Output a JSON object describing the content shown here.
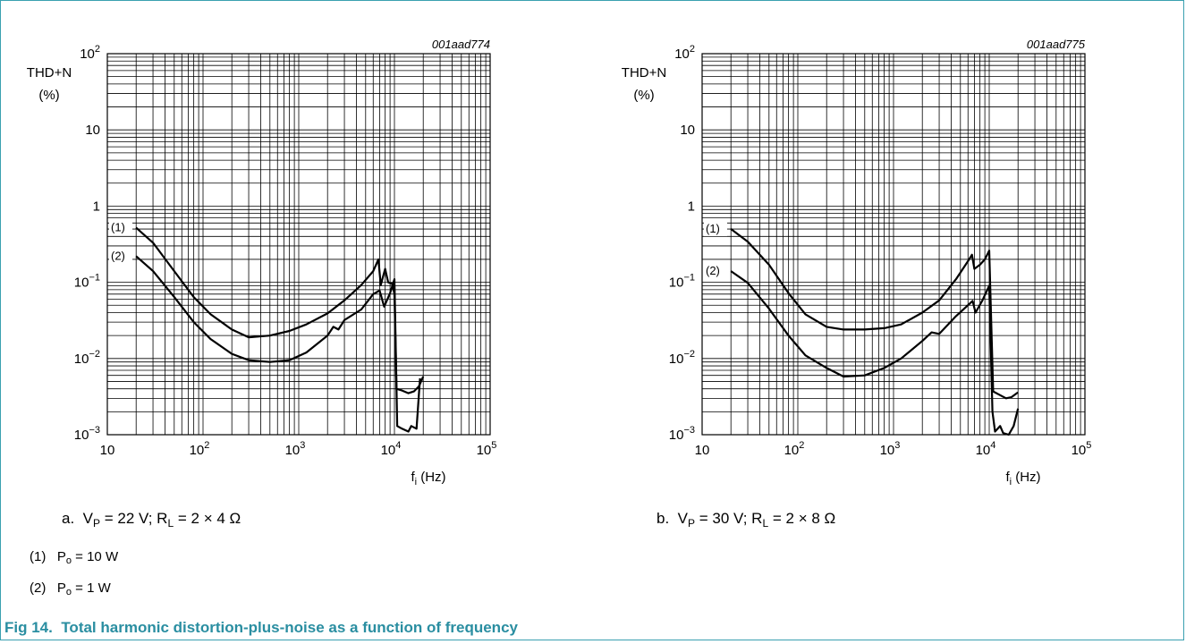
{
  "caption": {
    "fig_label": "Fig 14.",
    "fig_title": "Total harmonic distortion-plus-noise as a function of frequency"
  },
  "notes": [
    {
      "num": "(1)",
      "sym": "P",
      "sub": "o",
      "rest": " = 10 W"
    },
    {
      "num": "(2)",
      "sym": "P",
      "sub": "o",
      "rest": " = 1 W"
    }
  ],
  "chart_data": [
    {
      "type": "line",
      "code": "001aad774",
      "subcaption": {
        "prefix": "a.",
        "v_sym": "V",
        "v_sub": "P",
        "v_rest": " = 22 V; ",
        "r_sym": "R",
        "r_sub": "L",
        "r_rest": " = 2 × 4 Ω"
      },
      "ylabel": [
        "THD+N",
        "(%)"
      ],
      "xlabel": {
        "sym": "f",
        "sub": "i",
        "rest": " (Hz)"
      },
      "xscale": "log",
      "yscale": "log",
      "xlim": [
        10,
        100000
      ],
      "ylim": [
        0.001,
        100
      ],
      "x_ticks": [
        {
          "base": "10",
          "exp": ""
        },
        {
          "base": "10",
          "exp": "2"
        },
        {
          "base": "10",
          "exp": "3"
        },
        {
          "base": "10",
          "exp": "4"
        },
        {
          "base": "10",
          "exp": "5"
        }
      ],
      "y_ticks": [
        {
          "base": "10",
          "exp": "−3"
        },
        {
          "base": "10",
          "exp": "−2"
        },
        {
          "base": "10",
          "exp": "−1"
        },
        {
          "base": "1",
          "exp": ""
        },
        {
          "base": "10",
          "exp": ""
        },
        {
          "base": "10",
          "exp": "2"
        }
      ],
      "grid": true,
      "series": [
        {
          "name": "(1)",
          "points": [
            [
              20,
              0.52
            ],
            [
              30,
              0.33
            ],
            [
              50,
              0.14
            ],
            [
              80,
              0.064
            ],
            [
              120,
              0.038
            ],
            [
              200,
              0.024
            ],
            [
              300,
              0.019
            ],
            [
              500,
              0.02
            ],
            [
              800,
              0.023
            ],
            [
              1200,
              0.028
            ],
            [
              2000,
              0.039
            ],
            [
              3000,
              0.058
            ],
            [
              4500,
              0.092
            ],
            [
              6000,
              0.14
            ],
            [
              6800,
              0.2
            ],
            [
              7200,
              0.092
            ],
            [
              8000,
              0.15
            ],
            [
              8600,
              0.1
            ],
            [
              9500,
              0.095
            ],
            [
              10000,
              0.07
            ],
            [
              10500,
              0.004
            ],
            [
              12000,
              0.0038
            ],
            [
              14000,
              0.0035
            ],
            [
              16000,
              0.0037
            ],
            [
              18000,
              0.0043
            ],
            [
              20000,
              0.0058
            ]
          ]
        },
        {
          "name": "(2)",
          "points": [
            [
              20,
              0.22
            ],
            [
              30,
              0.14
            ],
            [
              50,
              0.064
            ],
            [
              80,
              0.03
            ],
            [
              120,
              0.018
            ],
            [
              200,
              0.0115
            ],
            [
              300,
              0.0095
            ],
            [
              500,
              0.009
            ],
            [
              800,
              0.0095
            ],
            [
              1200,
              0.012
            ],
            [
              2000,
              0.02
            ],
            [
              2300,
              0.026
            ],
            [
              2600,
              0.024
            ],
            [
              3000,
              0.032
            ],
            [
              4500,
              0.044
            ],
            [
              6000,
              0.07
            ],
            [
              7000,
              0.078
            ],
            [
              7800,
              0.048
            ],
            [
              9000,
              0.072
            ],
            [
              10000,
              0.11
            ],
            [
              10700,
              0.0013
            ],
            [
              12000,
              0.0012
            ],
            [
              14000,
              0.0011
            ],
            [
              15000,
              0.0013
            ],
            [
              17000,
              0.0012
            ],
            [
              18500,
              0.0055
            ]
          ]
        }
      ]
    },
    {
      "type": "line",
      "code": "001aad775",
      "subcaption": {
        "prefix": "b.",
        "v_sym": "V",
        "v_sub": "P",
        "v_rest": " = 30 V; ",
        "r_sym": "R",
        "r_sub": "L",
        "r_rest": " = 2 × 8 Ω"
      },
      "ylabel": [
        "THD+N",
        "(%)"
      ],
      "xlabel": {
        "sym": "f",
        "sub": "i",
        "rest": " (Hz)"
      },
      "xscale": "log",
      "yscale": "log",
      "xlim": [
        10,
        100000
      ],
      "ylim": [
        0.001,
        100
      ],
      "x_ticks": [
        {
          "base": "10",
          "exp": ""
        },
        {
          "base": "10",
          "exp": "2"
        },
        {
          "base": "10",
          "exp": "3"
        },
        {
          "base": "10",
          "exp": "4"
        },
        {
          "base": "10",
          "exp": "5"
        }
      ],
      "y_ticks": [
        {
          "base": "10",
          "exp": "−3"
        },
        {
          "base": "10",
          "exp": "−2"
        },
        {
          "base": "10",
          "exp": "−1"
        },
        {
          "base": "1",
          "exp": ""
        },
        {
          "base": "10",
          "exp": ""
        },
        {
          "base": "10",
          "exp": "2"
        }
      ],
      "grid": true,
      "series": [
        {
          "name": "(1)",
          "points": [
            [
              20,
              0.5
            ],
            [
              30,
              0.34
            ],
            [
              50,
              0.17
            ],
            [
              80,
              0.072
            ],
            [
              120,
              0.038
            ],
            [
              200,
              0.026
            ],
            [
              300,
              0.024
            ],
            [
              500,
              0.024
            ],
            [
              800,
              0.025
            ],
            [
              1200,
              0.028
            ],
            [
              2000,
              0.04
            ],
            [
              3000,
              0.058
            ],
            [
              4500,
              0.11
            ],
            [
              6000,
              0.19
            ],
            [
              6600,
              0.23
            ],
            [
              7000,
              0.15
            ],
            [
              8000,
              0.17
            ],
            [
              9000,
              0.2
            ],
            [
              10000,
              0.26
            ],
            [
              11000,
              0.0037
            ],
            [
              13000,
              0.0033
            ],
            [
              15000,
              0.003
            ],
            [
              17000,
              0.0031
            ],
            [
              20000,
              0.0036
            ]
          ]
        },
        {
          "name": "(2)",
          "points": [
            [
              20,
              0.14
            ],
            [
              30,
              0.098
            ],
            [
              50,
              0.045
            ],
            [
              80,
              0.02
            ],
            [
              120,
              0.011
            ],
            [
              200,
              0.0075
            ],
            [
              300,
              0.0058
            ],
            [
              500,
              0.006
            ],
            [
              800,
              0.0075
            ],
            [
              1200,
              0.01
            ],
            [
              2000,
              0.017
            ],
            [
              2500,
              0.022
            ],
            [
              3000,
              0.021
            ],
            [
              4500,
              0.036
            ],
            [
              6000,
              0.05
            ],
            [
              6700,
              0.057
            ],
            [
              7200,
              0.04
            ],
            [
              8500,
              0.058
            ],
            [
              10000,
              0.09
            ],
            [
              10800,
              0.002
            ],
            [
              11500,
              0.0011
            ],
            [
              13000,
              0.0013
            ],
            [
              14000,
              0.00105
            ],
            [
              16000,
              0.001
            ],
            [
              18000,
              0.0013
            ],
            [
              20000,
              0.0022
            ]
          ]
        }
      ]
    }
  ]
}
